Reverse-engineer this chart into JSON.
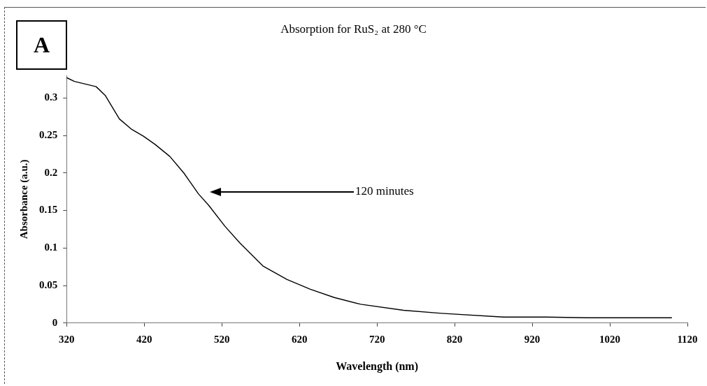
{
  "chart_data": {
    "type": "line",
    "title": "Absorption for RuS₂ at 280 °C",
    "xlabel": "Wavelength (nm)",
    "ylabel": "Absorbance (a.u.)",
    "annotations": [
      "A",
      "120 minutes"
    ],
    "x": [
      320,
      330,
      358,
      370,
      388,
      404,
      419,
      434,
      453,
      471,
      490,
      503,
      524,
      543,
      573,
      604,
      634,
      665,
      699,
      754,
      803,
      883,
      938,
      991,
      1100
    ],
    "series": [
      {
        "color": "#000000",
        "values": [
          0.327,
          0.322,
          0.315,
          0.303,
          0.272,
          0.258,
          0.249,
          0.238,
          0.222,
          0.2,
          0.172,
          0.157,
          0.129,
          0.107,
          0.076,
          0.058,
          0.045,
          0.034,
          0.025,
          0.017,
          0.013,
          0.008,
          0.008,
          0.007,
          0.007
        ]
      }
    ],
    "xlim": [
      320,
      1120
    ],
    "xticks": [
      320,
      420,
      520,
      620,
      720,
      820,
      920,
      1020,
      1120
    ],
    "ylim": [
      0,
      0.33
    ],
    "yticks": [
      0,
      0.05,
      0.1,
      0.15,
      0.2,
      0.25,
      0.3
    ],
    "legend": false,
    "marker": "none",
    "line_style": "solid"
  }
}
